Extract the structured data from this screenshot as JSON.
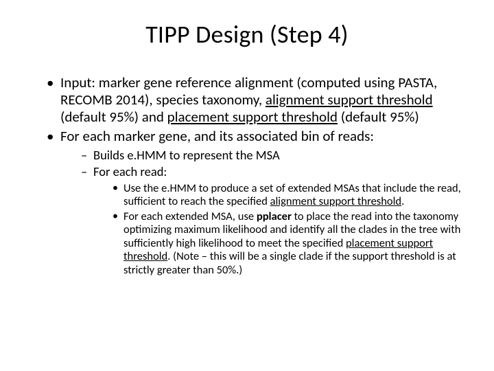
{
  "title": "TIPP Design (Step 4)",
  "bullets": {
    "b1_pre": "Input: marker gene reference alignment (computed using PASTA, RECOMB 2014), species taxonomy, ",
    "b1_u1": "alignment support threshold",
    "b1_mid": " (default 95%) and ",
    "b1_u2": "placement support threshold",
    "b1_post": " (default 95%)",
    "b2": "For each marker gene, and its associated bin of reads:",
    "b2a": "Builds e.HMM to represent the MSA",
    "b2b": "For each read:",
    "b2b1_pre": "Use the e.HMM to produce a set of extended MSAs that include the read, sufficient to reach the specified ",
    "b2b1_u": "alignment support threshold",
    "b2b1_post": ".",
    "b2b2_pre": "For each extended MSA, use ",
    "b2b2_bold": "pplacer",
    "b2b2_mid": " to place the read into the taxonomy optimizing maximum likelihood and identify all the clades in the tree with sufficiently high likelihood to meet the specified ",
    "b2b2_u": "placement support threshold",
    "b2b2_post": ". (Note – this will be a single clade if the support threshold is at strictly greater than 50%.)"
  },
  "colors": {
    "background": "#ffffff",
    "text": "#000000"
  },
  "fonts": {
    "title_size_pt": 36,
    "level1_size_pt": 21,
    "level2_size_pt": 18.5,
    "level3_size_pt": 16.5
  }
}
